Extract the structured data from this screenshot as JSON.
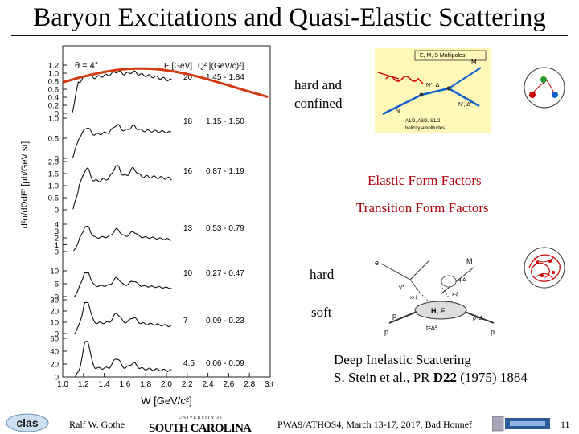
{
  "title": "Baryon Excitations and Quasi-Elastic Scattering",
  "annotations": {
    "hard_confined": [
      "hard and",
      "confined"
    ],
    "elastic": "Elastic Form Factors",
    "transition": "Transition Form Factors",
    "hard": "hard",
    "soft": "soft",
    "dis": "Deep Inelastic Scattering",
    "reference_prefix": "S. Stein et al., PR ",
    "reference_bold": "D22",
    "reference_suffix": " (1975) 1884"
  },
  "diagram_top": {
    "header": "E, M, S  Multipoles",
    "labels": {
      "M": "M",
      "N_star": "N*, Δ",
      "N_prime": "N', Δ'",
      "N": "N",
      "amps": "A1/2, A3/2, S1/2",
      "helicity": "helicity amplitudes"
    }
  },
  "diagram_bottom": {
    "labels": {
      "e": "e",
      "M": "M",
      "gamma": "γ*",
      "HE": "H, E",
      "p_left": "p",
      "p_bottom": "p",
      "p_right": "p",
      "t": "t=Δ²",
      "pd": "p+Δ",
      "qd": "q-Δ",
      "xd": "x+ξ",
      "xm": "x-ξ"
    }
  },
  "footer": {
    "author": "Ralf  W. Gothe",
    "clas": "clas",
    "university_top": "U N I V E R S I T Y  O F",
    "university": "SOUTH CAROLINA",
    "conference": "PWA9/ATHOS4, March 13-17, 2017, Bad Honnef",
    "page": "11"
  },
  "chart_data": {
    "type": "line",
    "xlabel": "W [GeV/c²]",
    "ylabel": "d²σ/dΩdE' [μb/GeV sr]",
    "x_ticks": [
      1.0,
      1.2,
      1.4,
      1.6,
      1.8,
      2.0,
      2.2,
      2.4,
      2.6,
      2.8,
      3.0
    ],
    "xlim": [
      1.0,
      3.0
    ],
    "angle_label": "θ = 4°",
    "col_header_E": "E [GeV]",
    "col_header_Q2": "Q² [(GeV/c)²]",
    "panels": [
      {
        "E": "20",
        "Q2": "1.45 - 1.84",
        "ticks": [
          "1.2",
          "1.0",
          "0.8",
          "0.6",
          "0.4",
          "0.2",
          "0"
        ]
      },
      {
        "E": "18",
        "Q2": "1.15 - 1.50",
        "ticks": [
          "1.0",
          "0.5",
          "0"
        ]
      },
      {
        "E": "16",
        "Q2": "0.87 - 1.19",
        "ticks": [
          "2.0",
          "1.5",
          "1.0",
          "0.5",
          "0"
        ]
      },
      {
        "E": "13",
        "Q2": "0.53 - 0.79",
        "ticks": [
          "4",
          "3",
          "2",
          "1",
          "0"
        ]
      },
      {
        "E": "10",
        "Q2": "0.27 - 0.47",
        "ticks": [
          "10",
          "5",
          "0"
        ]
      },
      {
        "E": "7",
        "Q2": "0.09 - 0.23",
        "ticks": [
          "30",
          "20",
          "10",
          "0"
        ]
      },
      {
        "E": "4.5",
        "Q2": "0.06 - 0.09",
        "ticks": [
          "60",
          "40",
          "20",
          "0"
        ]
      }
    ]
  },
  "colors": {
    "fit_curve": "#d43a10",
    "text_red": "#b0000a",
    "diagram_bg": "#fff8b8",
    "rule": "#1a1a1a"
  }
}
